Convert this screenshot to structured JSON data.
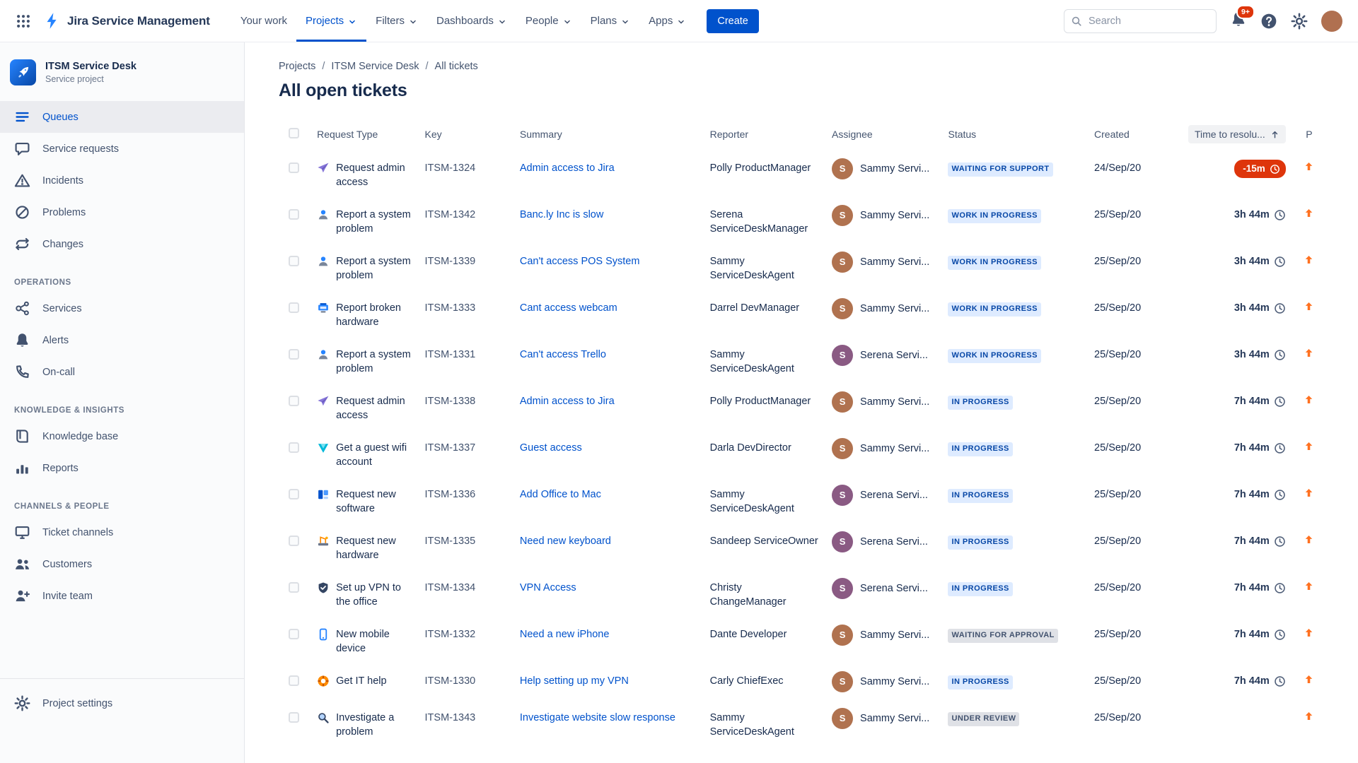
{
  "theme": {
    "accent": "#0052CC",
    "link": "#0052CC",
    "lozenge_blue_bg": "#DEEBFF",
    "lozenge_blue_text": "#0747A6",
    "lozenge_gray_bg": "#DFE1E6",
    "lozenge_gray_text": "#42526E",
    "breach_red": "#DE350B",
    "priority_orange": "#FF7120",
    "notification_red": "#DE350B"
  },
  "navbar": {
    "app_name": "Jira Service Management",
    "items": [
      {
        "label": "Your work",
        "chevron": false,
        "active": false
      },
      {
        "label": "Projects",
        "chevron": true,
        "active": true
      },
      {
        "label": "Filters",
        "chevron": true,
        "active": false
      },
      {
        "label": "Dashboards",
        "chevron": true,
        "active": false
      },
      {
        "label": "People",
        "chevron": true,
        "active": false
      },
      {
        "label": "Plans",
        "chevron": true,
        "active": false
      },
      {
        "label": "Apps",
        "chevron": true,
        "active": false
      }
    ],
    "create_label": "Create",
    "search_placeholder": "Search",
    "notifications_badge": "9+",
    "avatar_color": "#B07050"
  },
  "sidebar": {
    "project_name": "ITSM Service Desk",
    "project_type": "Service project",
    "sections": [
      {
        "heading": null,
        "items": [
          {
            "label": "Queues",
            "icon": "queues-icon",
            "active": true
          },
          {
            "label": "Service requests",
            "icon": "comment-icon",
            "active": false
          },
          {
            "label": "Incidents",
            "icon": "warning-icon",
            "active": false
          },
          {
            "label": "Problems",
            "icon": "slash-circle-icon",
            "active": false
          },
          {
            "label": "Changes",
            "icon": "swap-icon",
            "active": false
          }
        ]
      },
      {
        "heading": "OPERATIONS",
        "items": [
          {
            "label": "Services",
            "icon": "graph-icon",
            "active": false
          },
          {
            "label": "Alerts",
            "icon": "bell-icon",
            "active": false
          },
          {
            "label": "On-call",
            "icon": "phone-icon",
            "active": false
          }
        ]
      },
      {
        "heading": "KNOWLEDGE & INSIGHTS",
        "items": [
          {
            "label": "Knowledge base",
            "icon": "book-icon",
            "active": false
          },
          {
            "label": "Reports",
            "icon": "chart-icon",
            "active": false
          }
        ]
      },
      {
        "heading": "CHANNELS & PEOPLE",
        "items": [
          {
            "label": "Ticket channels",
            "icon": "monitor-icon",
            "active": false
          },
          {
            "label": "Customers",
            "icon": "people-icon",
            "active": false
          },
          {
            "label": "Invite team",
            "icon": "person-add-icon",
            "active": false
          }
        ]
      }
    ],
    "footer": {
      "label": "Project settings",
      "icon": "gear-icon"
    }
  },
  "main": {
    "breadcrumb": [
      "Projects",
      "ITSM Service Desk",
      "All tickets"
    ],
    "breadcrumb_separator": "/",
    "title": "All open tickets",
    "table": {
      "columns": [
        {
          "id": "select",
          "label": ""
        },
        {
          "id": "type",
          "label": "Request Type"
        },
        {
          "id": "key",
          "label": "Key"
        },
        {
          "id": "summary",
          "label": "Summary"
        },
        {
          "id": "reporter",
          "label": "Reporter"
        },
        {
          "id": "assignee",
          "label": "Assignee"
        },
        {
          "id": "status",
          "label": "Status"
        },
        {
          "id": "created",
          "label": "Created"
        },
        {
          "id": "time",
          "label": "Time to resolu...",
          "sorted": true
        },
        {
          "id": "priority",
          "label": "P"
        }
      ],
      "rows": [
        {
          "icon": "plane-icon",
          "type": "Request admin access",
          "key": "ITSM-1324",
          "summary": "Admin access to Jira",
          "reporter": "Polly ProductManager",
          "assignee": "Sammy Servi...",
          "assignee_color": "#B0724F",
          "status": "WAITING FOR SUPPORT",
          "status_variant": "blue",
          "created": "24/Sep/20",
          "time": "-15m",
          "time_variant": "breached",
          "priority": "up"
        },
        {
          "icon": "person-icon",
          "type": "Report a system problem",
          "key": "ITSM-1342",
          "summary": "Banc.ly Inc is slow",
          "reporter": "Serena ServiceDeskManager",
          "assignee": "Sammy Servi...",
          "assignee_color": "#B0724F",
          "status": "WORK IN PROGRESS",
          "status_variant": "blue",
          "created": "25/Sep/20",
          "time": "3h 44m",
          "time_variant": "normal",
          "priority": "up"
        },
        {
          "icon": "person-icon",
          "type": "Report a system problem",
          "key": "ITSM-1339",
          "summary": "Can't access POS System",
          "reporter": "Sammy ServiceDeskAgent",
          "assignee": "Sammy Servi...",
          "assignee_color": "#B0724F",
          "status": "WORK IN PROGRESS",
          "status_variant": "blue",
          "created": "25/Sep/20",
          "time": "3h 44m",
          "time_variant": "normal",
          "priority": "up"
        },
        {
          "icon": "printer-icon",
          "type": "Report broken hardware",
          "key": "ITSM-1333",
          "summary": "Cant access webcam",
          "reporter": "Darrel DevManager",
          "assignee": "Sammy Servi...",
          "assignee_color": "#B0724F",
          "status": "WORK IN PROGRESS",
          "status_variant": "blue",
          "created": "25/Sep/20",
          "time": "3h 44m",
          "time_variant": "normal",
          "priority": "up"
        },
        {
          "icon": "person-icon",
          "type": "Report a system problem",
          "key": "ITSM-1331",
          "summary": "Can't access Trello",
          "reporter": "Sammy ServiceDeskAgent",
          "assignee": "Serena Servi...",
          "assignee_color": "#8A5A83",
          "status": "WORK IN PROGRESS",
          "status_variant": "blue",
          "created": "25/Sep/20",
          "time": "3h 44m",
          "time_variant": "normal",
          "priority": "up"
        },
        {
          "icon": "plane-icon",
          "type": "Request admin access",
          "key": "ITSM-1338",
          "summary": "Admin access to Jira",
          "reporter": "Polly ProductManager",
          "assignee": "Sammy Servi...",
          "assignee_color": "#B0724F",
          "status": "IN PROGRESS",
          "status_variant": "blue",
          "created": "25/Sep/20",
          "time": "7h 44m",
          "time_variant": "normal",
          "priority": "up"
        },
        {
          "icon": "wifi-icon",
          "type": "Get a guest wifi account",
          "key": "ITSM-1337",
          "summary": "Guest access",
          "reporter": "Darla DevDirector",
          "assignee": "Sammy Servi...",
          "assignee_color": "#B0724F",
          "status": "IN PROGRESS",
          "status_variant": "blue",
          "created": "25/Sep/20",
          "time": "7h 44m",
          "time_variant": "normal",
          "priority": "up"
        },
        {
          "icon": "software-icon",
          "type": "Request new software",
          "key": "ITSM-1336",
          "summary": "Add Office to Mac",
          "reporter": "Sammy ServiceDeskAgent",
          "assignee": "Serena Servi...",
          "assignee_color": "#8A5A83",
          "status": "IN PROGRESS",
          "status_variant": "blue",
          "created": "25/Sep/20",
          "time": "7h 44m",
          "time_variant": "normal",
          "priority": "up"
        },
        {
          "icon": "crane-icon",
          "type": "Request new hardware",
          "key": "ITSM-1335",
          "summary": "Need new keyboard",
          "reporter": "Sandeep ServiceOwner",
          "assignee": "Serena Servi...",
          "assignee_color": "#8A5A83",
          "status": "IN PROGRESS",
          "status_variant": "blue",
          "created": "25/Sep/20",
          "time": "7h 44m",
          "time_variant": "normal",
          "priority": "up"
        },
        {
          "icon": "shield-icon",
          "type": "Set up VPN to the office",
          "key": "ITSM-1334",
          "summary": "VPN Access",
          "reporter": "Christy ChangeManager",
          "assignee": "Serena Servi...",
          "assignee_color": "#8A5A83",
          "status": "IN PROGRESS",
          "status_variant": "blue",
          "created": "25/Sep/20",
          "time": "7h 44m",
          "time_variant": "normal",
          "priority": "up"
        },
        {
          "icon": "mobile-icon",
          "type": "New mobile device",
          "key": "ITSM-1332",
          "summary": "Need a new iPhone",
          "reporter": "Dante Developer",
          "assignee": "Sammy Servi...",
          "assignee_color": "#B0724F",
          "status": "WAITING FOR APPROVAL",
          "status_variant": "gray",
          "created": "25/Sep/20",
          "time": "7h 44m",
          "time_variant": "normal",
          "priority": "up"
        },
        {
          "icon": "lifebuoy-icon",
          "type": "Get IT help",
          "key": "ITSM-1330",
          "summary": "Help setting up my VPN",
          "reporter": "Carly ChiefExec",
          "assignee": "Sammy Servi...",
          "assignee_color": "#B0724F",
          "status": "IN PROGRESS",
          "status_variant": "blue",
          "created": "25/Sep/20",
          "time": "7h 44m",
          "time_variant": "normal",
          "priority": "up"
        },
        {
          "icon": "magnifier-icon",
          "type": "Investigate a problem",
          "key": "ITSM-1343",
          "summary": "Investigate website slow response",
          "reporter": "Sammy ServiceDeskAgent",
          "assignee": "Sammy Servi...",
          "assignee_color": "#B0724F",
          "status": "UNDER REVIEW",
          "status_variant": "gray",
          "created": "25/Sep/20",
          "time": "",
          "time_variant": "none",
          "priority": "up"
        }
      ]
    }
  }
}
